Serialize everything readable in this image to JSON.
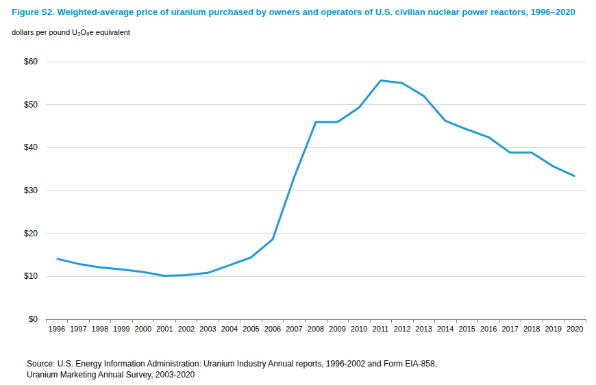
{
  "chart_data": {
    "type": "line",
    "title": "Figure S2. Weighted-average price of uranium purchased by owners and operators of U.S. civilian nuclear power reactors, 1996–2020",
    "y_label": "dollars per pound U₃O₈e equivalent",
    "source": "Source: U.S. Energy Information Administration: Uranium Industry Annual reports, 1996-2002 and Form EIA-858, Uranium Marketing Annual Survey, 2003-2020",
    "categories": [
      "1996",
      "1997",
      "1998",
      "1999",
      "2000",
      "2001",
      "2002",
      "2003",
      "2004",
      "2005",
      "2006",
      "2007",
      "2008",
      "2009",
      "2010",
      "2011",
      "2012",
      "2013",
      "2014",
      "2015",
      "2016",
      "2017",
      "2018",
      "2019",
      "2020"
    ],
    "values": [
      14.1,
      12.9,
      12.1,
      11.6,
      11.0,
      10.1,
      10.3,
      10.8,
      12.6,
      14.4,
      18.6,
      33.1,
      45.9,
      45.9,
      49.3,
      55.6,
      55.0,
      52.0,
      46.2,
      44.2,
      42.4,
      38.8,
      38.8,
      35.6,
      33.3
    ],
    "color": "#1e9ad6",
    "ylim": [
      0,
      60
    ],
    "yticks": [
      {
        "value": 0,
        "label": "$0"
      },
      {
        "value": 10,
        "label": "$10"
      },
      {
        "value": 20,
        "label": "$20"
      },
      {
        "value": 30,
        "label": "$30"
      },
      {
        "value": 40,
        "label": "$40"
      },
      {
        "value": 50,
        "label": "$50"
      },
      {
        "value": 60,
        "label": "$60"
      }
    ],
    "grid": true
  }
}
